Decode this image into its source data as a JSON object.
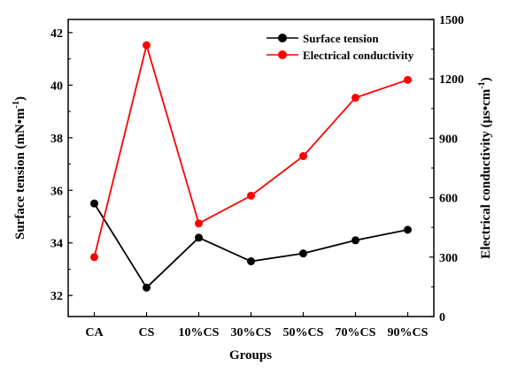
{
  "chart_data": {
    "type": "line",
    "categories": [
      "CA",
      "CS",
      "10%CS",
      "30%CS",
      "50%CS",
      "70%CS",
      "90%CS"
    ],
    "xlabel": "Groups",
    "y_left": {
      "label": "Surface tension (mN•m",
      "label_sup": "-1",
      "label_end": ")",
      "ylim": [
        31.2,
        42.5
      ],
      "ticks": [
        32,
        34,
        36,
        38,
        40,
        42
      ]
    },
    "y_right": {
      "label": "Electrical conductivity (μs•cm",
      "label_sup": "-1",
      "label_end": ")",
      "ylim": [
        0,
        1500
      ],
      "ticks": [
        0,
        300,
        600,
        900,
        1200,
        1500
      ]
    },
    "series": [
      {
        "name": "Surface tension",
        "axis": "left",
        "color": "#000000",
        "values": [
          35.5,
          32.3,
          34.2,
          33.3,
          33.6,
          34.1,
          34.5
        ]
      },
      {
        "name": "Electrical conductivity",
        "axis": "right",
        "color": "#ff0000",
        "values": [
          300,
          1370,
          470,
          610,
          810,
          1105,
          1195
        ]
      }
    ],
    "legend": "top-right",
    "grid": false
  }
}
